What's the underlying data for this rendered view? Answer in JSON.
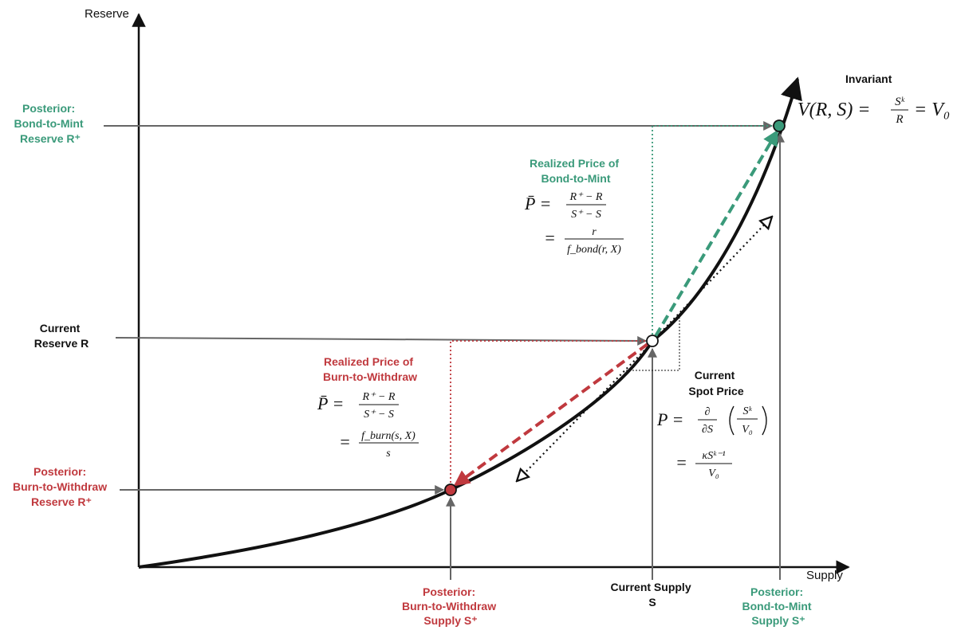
{
  "axes": {
    "x_label": "Supply",
    "y_label": "Reserve"
  },
  "invariant": {
    "title": "Invariant",
    "lhs": "V(R, S) =",
    "num": "Sᵏ",
    "den": "R",
    "rhs": "= V₀"
  },
  "bond": {
    "reserve_label": [
      "Posterior:",
      "Bond-to-Mint",
      "Reserve R⁺"
    ],
    "supply_label": [
      "Posterior:",
      "Bond-to-Mint",
      "Supply S⁺"
    ],
    "realized_title": [
      "Realized Price of",
      "Bond-to-Mint"
    ],
    "eq1_lhs": "P̄ =",
    "eq1_num": "R⁺ − R",
    "eq1_den": "S⁺ − S",
    "eq2_lhs": "=",
    "eq2_num": "r",
    "eq2_den": "f_bond(r, X)",
    "color": "#3a9a7a"
  },
  "burn": {
    "reserve_label": [
      "Posterior:",
      "Burn-to-Withdraw",
      "Reserve R⁺"
    ],
    "supply_label": [
      "Posterior:",
      "Burn-to-Withdraw",
      "Supply S⁺"
    ],
    "realized_title": [
      "Realized Price of",
      "Burn-to-Withdraw"
    ],
    "eq1_lhs": "P̄ =",
    "eq1_num": "R⁺ − R",
    "eq1_den": "S⁺ − S",
    "eq2_lhs": "=",
    "eq2_num": "f_burn(s, X)",
    "eq2_den": "s",
    "color": "#c0393e"
  },
  "current": {
    "reserve_label": [
      "Current",
      "Reserve R"
    ],
    "supply_label": [
      "Current Supply",
      "S"
    ],
    "spot_title": [
      "Current",
      "Spot Price"
    ],
    "eq1_lhs": "P =",
    "eq1_op_num": "∂",
    "eq1_op_den": "∂S",
    "eq1_num": "Sᵏ",
    "eq1_den": "V₀",
    "eq2_lhs": "=",
    "eq2_num": "κSᵏ⁻¹",
    "eq2_den": "V₀"
  }
}
